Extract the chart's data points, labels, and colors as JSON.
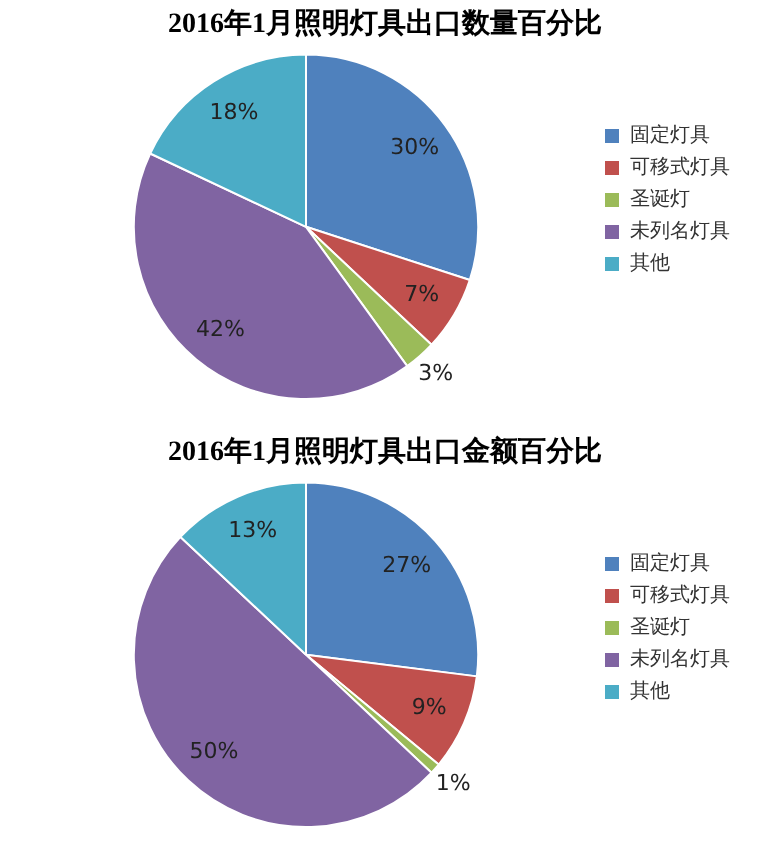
{
  "chart_data": [
    {
      "type": "pie",
      "title": "2016年1月照明灯具出口数量百分比",
      "categories": [
        "固定灯具",
        "可移式灯具",
        "圣诞灯",
        "未列名灯具",
        "其他"
      ],
      "values": [
        30,
        7,
        3,
        42,
        18
      ],
      "colors": [
        "#4f81bd",
        "#c0504d",
        "#9bbb59",
        "#8064a2",
        "#4bacc6"
      ],
      "value_labels": [
        "30%",
        "7%",
        "3%",
        "42%",
        "18%"
      ],
      "legend": "right"
    },
    {
      "type": "pie",
      "title": "2016年1月照明灯具出口金额百分比",
      "categories": [
        "固定灯具",
        "可移式灯具",
        "圣诞灯",
        "未列名灯具",
        "其他"
      ],
      "values": [
        27,
        9,
        1,
        50,
        13
      ],
      "colors": [
        "#4f81bd",
        "#c0504d",
        "#9bbb59",
        "#8064a2",
        "#4bacc6"
      ],
      "value_labels": [
        "27%",
        "9%",
        "1%",
        "50%",
        "13%"
      ],
      "legend": "right"
    }
  ]
}
